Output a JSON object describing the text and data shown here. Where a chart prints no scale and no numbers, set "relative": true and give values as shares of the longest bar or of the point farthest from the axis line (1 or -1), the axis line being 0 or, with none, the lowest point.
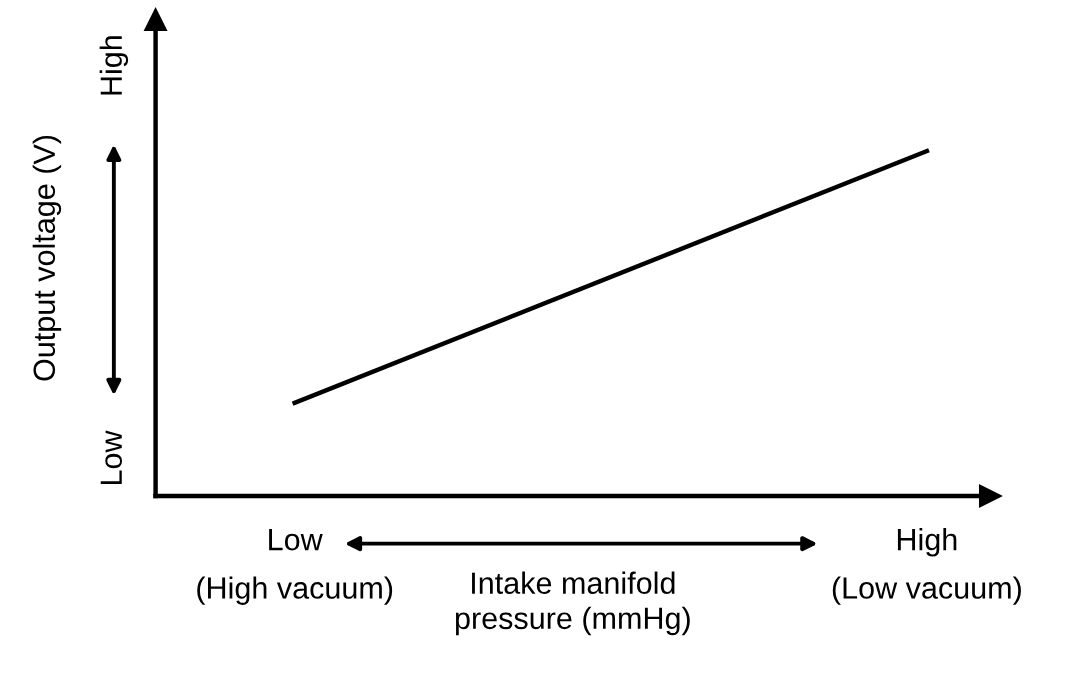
{
  "chart_data": {
    "type": "line",
    "relative": true,
    "xlabel": "Intake manifold\npressure (mmHg)",
    "ylabel": "Output voltage (V)",
    "categories": [
      "Low\n(High vacuum)",
      "High\n(Low vacuum)"
    ],
    "series": [
      {
        "color": "#000000",
        "values": [
          0.27,
          1
        ]
      }
    ],
    "annotations": [
      "High",
      "Low"
    ],
    "tick_labels": "x",
    "marker": "none",
    "line_style": "solid"
  }
}
